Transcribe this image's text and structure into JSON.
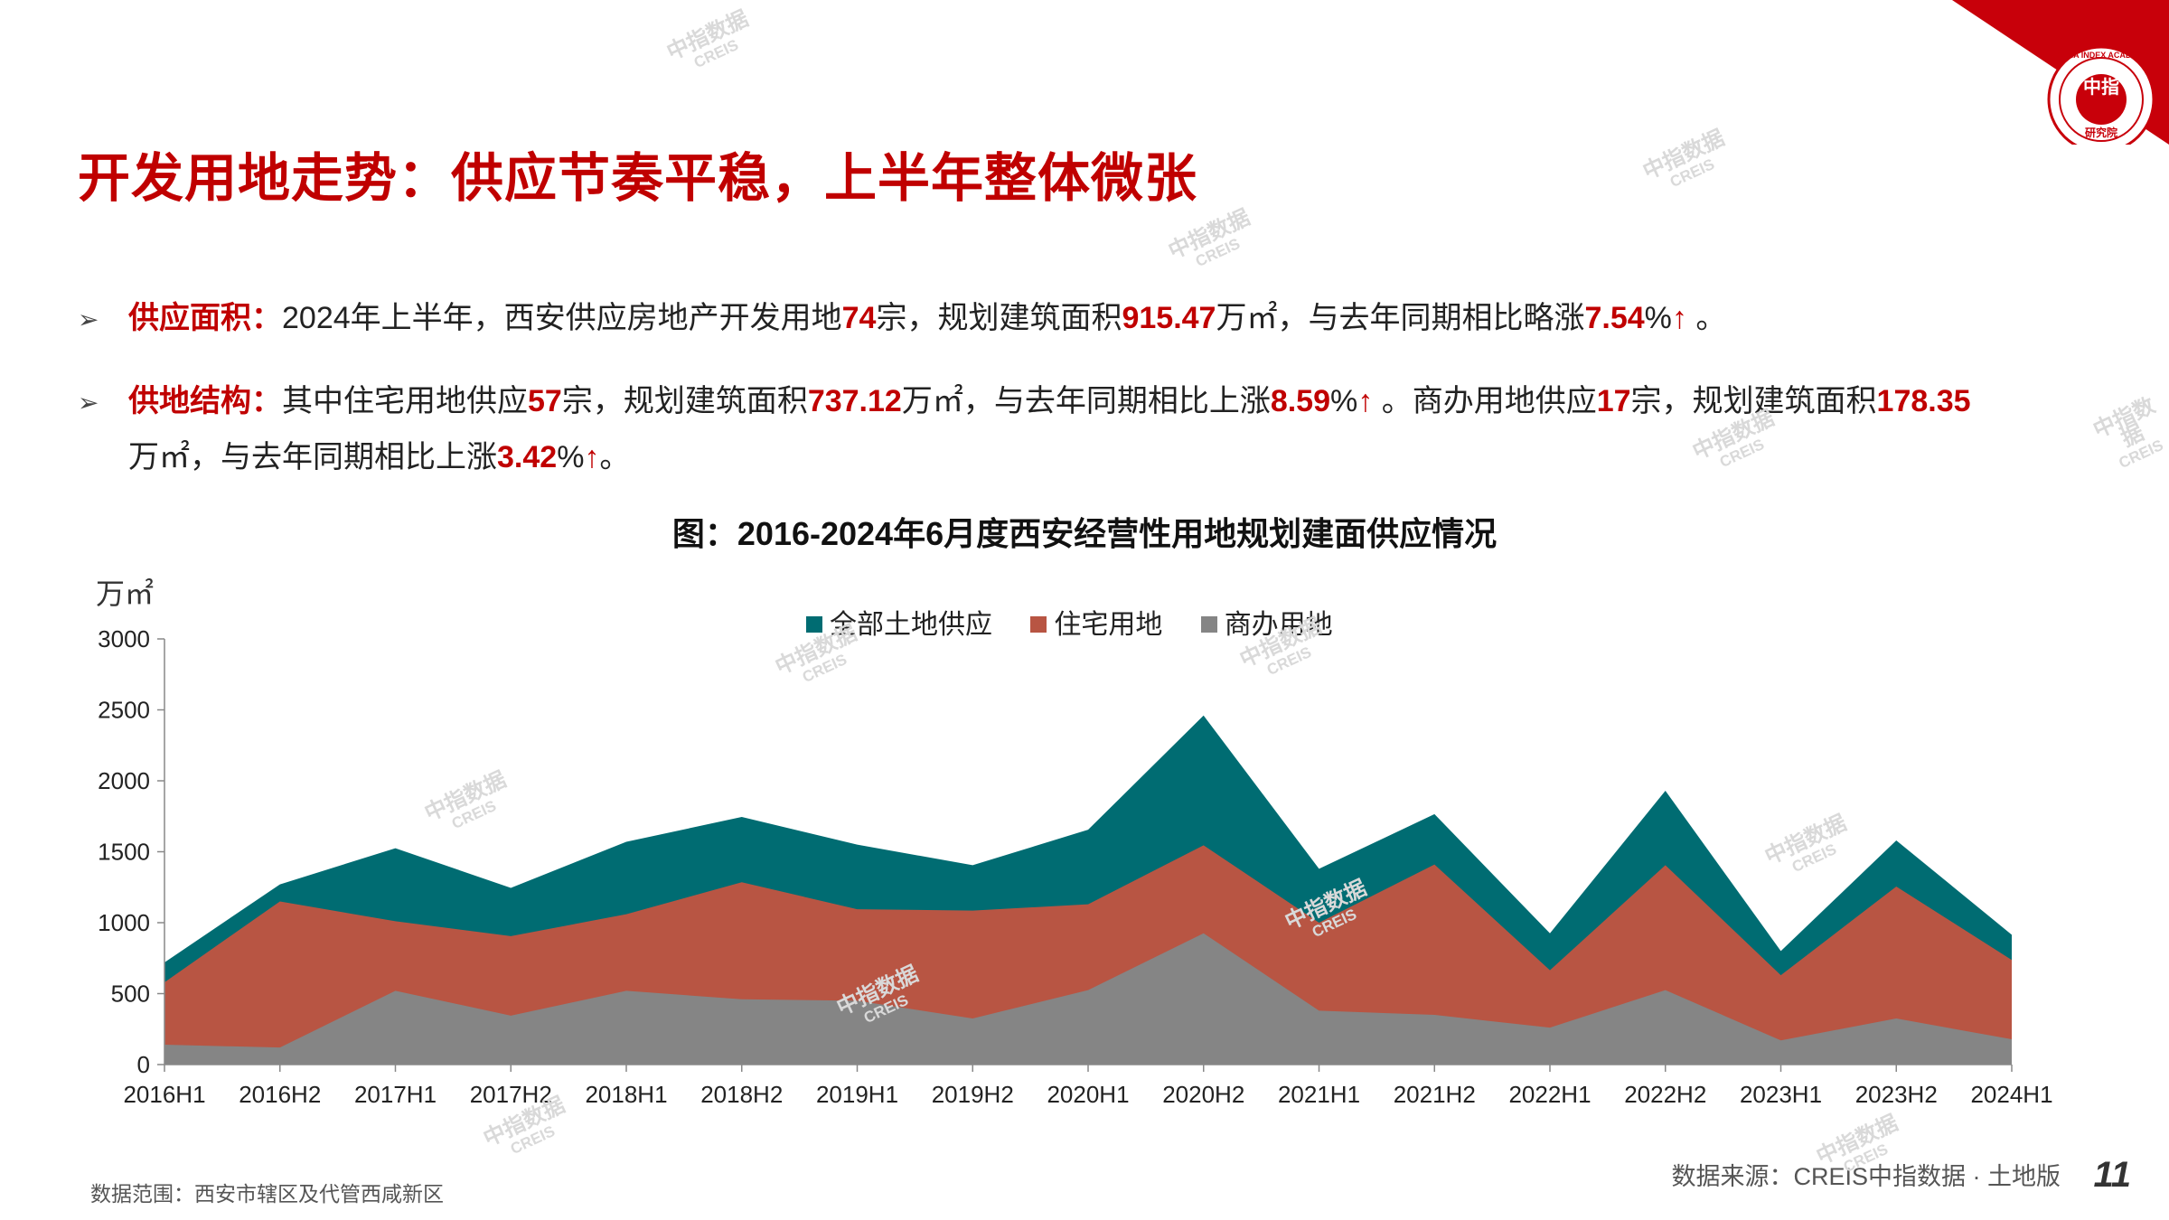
{
  "header": {
    "title": "开发用地走势：供应节奏平稳，上半年整体微张",
    "logo_text_top": "CHINA INDEX ACADEMY",
    "logo_text_center": "中指",
    "logo_text_bottom": "研究院"
  },
  "bullets": {
    "b1": {
      "label": "供应面积：",
      "t1": "2024年上半年，西安供应房地产开发用地",
      "v1": "74",
      "t2": "宗，规划建筑面积",
      "v2": "915.47",
      "t3": "万㎡，与去年同期相比略涨",
      "v3": "7.54",
      "t4": "%",
      "arrow": "↑",
      "t5": " 。"
    },
    "b2": {
      "label": "供地结构：",
      "t1": "其中住宅用地供应",
      "v1": "57",
      "t2": "宗，规划建筑面积",
      "v2": "737.12",
      "t3": "万㎡，与去年同期相比上涨",
      "v3": "8.59",
      "t4": "%",
      "arrow": "↑",
      "t5": " 。商办用地供应",
      "v4": "17",
      "t6": "宗，规划建筑面积",
      "v5": "178.35",
      "t7": "万㎡，与去年同期相比上涨",
      "v6": "3.42",
      "t8": "%",
      "arrow2": "↑",
      "t9": "。"
    }
  },
  "chart_data": {
    "type": "area",
    "title": "图：2016-2024年6月度西安经营性用地规划建面供应情况",
    "ylabel": "万㎡",
    "xlabel": "",
    "ylim": [
      0,
      3000
    ],
    "yticks": [
      0,
      500,
      1000,
      1500,
      2000,
      2500,
      3000
    ],
    "categories": [
      "2016H1",
      "2016H2",
      "2017H1",
      "2017H2",
      "2018H1",
      "2018H2",
      "2019H1",
      "2019H2",
      "2020H1",
      "2020H2",
      "2021H1",
      "2021H2",
      "2022H1",
      "2022H2",
      "2023H1",
      "2023H2",
      "2024H1"
    ],
    "series": [
      {
        "name": "全部土地供应",
        "color": "#006c72",
        "values": [
          720,
          1270,
          1525,
          1245,
          1570,
          1745,
          1550,
          1405,
          1655,
          2460,
          1380,
          1765,
          925,
          1930,
          800,
          1580,
          915
        ]
      },
      {
        "name": "住宅用地",
        "color": "#b85543",
        "values": [
          580,
          1150,
          1010,
          905,
          1060,
          1285,
          1095,
          1085,
          1130,
          1545,
          1000,
          1410,
          665,
          1405,
          630,
          1255,
          737
        ]
      },
      {
        "name": "商办用地",
        "color": "#858585",
        "values": [
          140,
          120,
          520,
          345,
          520,
          460,
          450,
          325,
          525,
          925,
          380,
          350,
          260,
          525,
          170,
          325,
          178
        ]
      }
    ],
    "legend_position": "top-center",
    "grid": false
  },
  "footer": {
    "scope": "数据范围：西安市辖区及代管西咸新区",
    "source": "数据来源：CREIS中指数据 · 土地版",
    "page": "11"
  },
  "watermark": {
    "line1": "中指数据",
    "line2": "CREIS"
  }
}
